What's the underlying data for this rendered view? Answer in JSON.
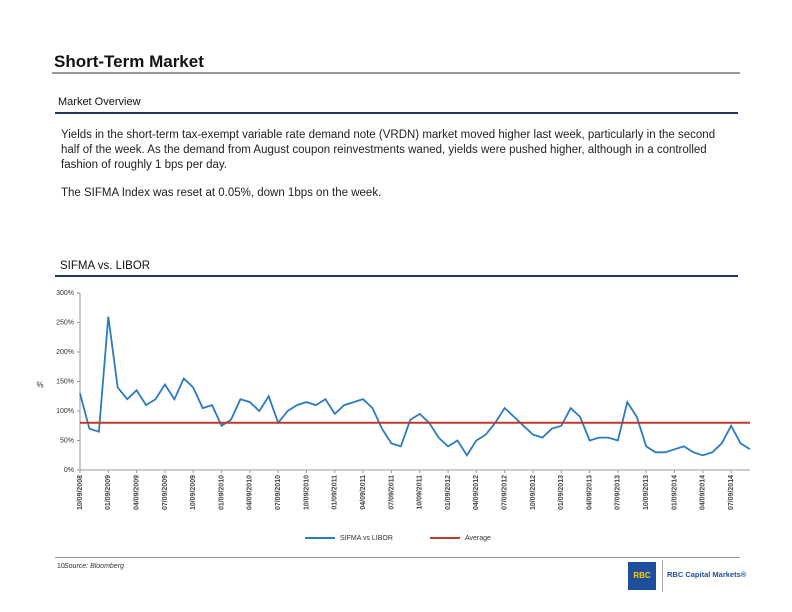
{
  "header": {
    "title": "Short-Term Market"
  },
  "section": {
    "title": "Market Overview",
    "paragraphs": [
      "Yields in the short-term tax-exempt variable rate demand note (VRDN) market moved higher last week, particularly in the second half of the week. As the demand from August coupon reinvestments waned, yields were pushed higher, although in a controlled fashion of roughly 1 bps per day.",
      "The SIFMA Index was reset at 0.05%, down 1bps on the week."
    ]
  },
  "chart_section": {
    "title": "SIFMA vs. LIBOR"
  },
  "chart_data": {
    "type": "line",
    "y_label": "%",
    "categories": [
      "10/09/2008",
      null,
      null,
      "01/09/2009",
      null,
      null,
      "04/09/2009",
      null,
      null,
      "07/09/2009",
      null,
      null,
      "10/09/2009",
      null,
      null,
      "01/09/2010",
      null,
      null,
      "04/09/2010",
      null,
      null,
      "07/09/2010",
      null,
      null,
      "10/09/2010",
      null,
      null,
      "01/09/2011",
      null,
      null,
      "04/09/2011",
      null,
      null,
      "07/09/2011",
      null,
      null,
      "10/09/2011",
      null,
      null,
      "01/09/2012",
      null,
      null,
      "04/09/2012",
      null,
      null,
      "07/09/2012",
      null,
      null,
      "10/09/2012",
      null,
      null,
      "01/09/2013",
      null,
      null,
      "04/09/2013",
      null,
      null,
      "07/09/2013",
      null,
      null,
      "10/09/2013",
      null,
      null,
      "01/09/2014",
      null,
      null,
      "04/09/2014",
      null,
      null,
      "07/09/2014",
      null,
      null
    ],
    "series": [
      {
        "name": "SIFMA vs LIBOR",
        "color": "#2b7bbf",
        "values": [
          130,
          70,
          65,
          260,
          140,
          120,
          135,
          110,
          120,
          145,
          120,
          155,
          140,
          105,
          110,
          75,
          85,
          120,
          115,
          100,
          125,
          80,
          100,
          110,
          115,
          110,
          120,
          95,
          110,
          115,
          120,
          105,
          70,
          45,
          40,
          85,
          95,
          80,
          55,
          40,
          50,
          25,
          50,
          60,
          80,
          105,
          90,
          75,
          60,
          55,
          70,
          75,
          105,
          90,
          50,
          55,
          55,
          50,
          115,
          90,
          40,
          30,
          30,
          35,
          40,
          30,
          25,
          30,
          45,
          75,
          45,
          35
        ]
      }
    ],
    "reference_line": {
      "name": "Average",
      "value": 80,
      "color": "#c0392b"
    },
    "ylim": [
      0,
      300
    ],
    "yticks": [
      {
        "value": 0,
        "label": "0%"
      },
      {
        "value": 50,
        "label": "50%"
      },
      {
        "value": 100,
        "label": "100%"
      },
      {
        "value": 150,
        "label": "150%"
      },
      {
        "value": 200,
        "label": "200%"
      },
      {
        "value": 250,
        "label": "250%"
      },
      {
        "value": 300,
        "label": "300%"
      }
    ]
  },
  "footer": {
    "page": "10",
    "source": "Source: Bloomberg",
    "logo": "RBC",
    "brand": "RBC Capital Markets®"
  }
}
